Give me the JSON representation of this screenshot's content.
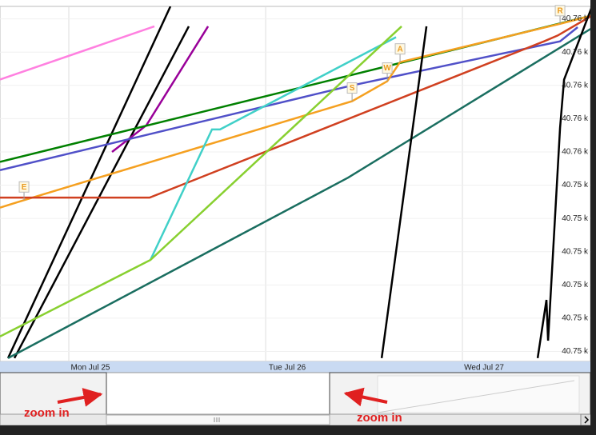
{
  "chart_data": {
    "type": "line",
    "xlim": [
      -8.39,
      63.6
    ],
    "xticks": [
      {
        "value": 0,
        "label": "Mon Jul 25"
      },
      {
        "value": 24,
        "label": "Tue Jul 26"
      },
      {
        "value": 48,
        "label": "Wed Jul 27"
      }
    ],
    "ylim": [
      40752.78,
      40757.05
    ],
    "yticks": [
      {
        "value": 40756.9,
        "label": "40.76 k"
      },
      {
        "value": 40756.5,
        "label": "40.76 k"
      },
      {
        "value": 40756.1,
        "label": "40.76 k"
      },
      {
        "value": 40755.7,
        "label": "40.76 k"
      },
      {
        "value": 40755.3,
        "label": "40.76 k"
      },
      {
        "value": 40754.9,
        "label": "40.75 k"
      },
      {
        "value": 40754.5,
        "label": "40.75 k"
      },
      {
        "value": 40754.1,
        "label": "40.75 k"
      },
      {
        "value": 40753.7,
        "label": "40.75 k"
      },
      {
        "value": 40753.3,
        "label": "40.75 k"
      },
      {
        "value": 40752.9,
        "label": "40.75 k"
      }
    ],
    "grid": true,
    "series": [
      {
        "color": "#ff80e0",
        "x": [
          -8.39,
          10.44
        ],
        "values": [
          40756.17,
          40756.81
        ]
      },
      {
        "color": "#000000",
        "x": [
          -7.41,
          12.39
        ],
        "values": [
          40752.82,
          40757.05
        ]
      },
      {
        "color": "#000000",
        "x": [
          -6.63,
          14.63
        ],
        "values": [
          40752.82,
          40756.81
        ]
      },
      {
        "color": "#990099",
        "x": [
          5.27,
          9.46,
          16.98
        ],
        "values": [
          40755.3,
          40755.62,
          40756.81
        ]
      },
      {
        "color": "#008000",
        "x": [
          -8.39,
          63.8
        ],
        "values": [
          40755.18,
          40756.94
        ]
      },
      {
        "color": "#5050c8",
        "x": [
          -8.39,
          34.54,
          59.9,
          62.05
        ],
        "values": [
          40755.08,
          40756.1,
          40756.63,
          40756.8
        ]
      },
      {
        "color": "#f5a020",
        "x": [
          -8.39,
          -5.46,
          34.54,
          38.83,
          40.39,
          59.9,
          63.8
        ],
        "values": [
          40754.63,
          40754.72,
          40755.91,
          40756.15,
          40756.38,
          40756.84,
          40756.94
        ]
      },
      {
        "color": "#d04020",
        "x": [
          -8.39,
          9.85,
          57.95,
          59.61,
          63.8
        ],
        "values": [
          40754.75,
          40754.75,
          40756.63,
          40756.7,
          40756.94
        ]
      },
      {
        "color": "#40d0c8",
        "x": [
          9.95,
          17.46,
          18.44,
          39.9
        ],
        "values": [
          40754.0,
          40755.57,
          40755.57,
          40756.68
        ]
      },
      {
        "color": "#88d030",
        "x": [
          -8.39,
          9.95,
          40.58
        ],
        "values": [
          40753.08,
          40754.0,
          40756.81
        ]
      },
      {
        "color": "#1a6e60",
        "x": [
          -7.41,
          34.05,
          63.8
        ],
        "values": [
          40752.82,
          40754.99,
          40756.79
        ]
      },
      {
        "color": "#000000",
        "x": [
          38.15,
          43.61
        ],
        "values": [
          40752.82,
          40756.81
        ]
      },
      {
        "color": "#000000",
        "x": [
          57.17,
          58.24,
          58.44,
          59.9,
          60.39,
          63.8
        ],
        "values": [
          40752.82,
          40753.52,
          40753.03,
          40755.59,
          40756.17,
          40757.05
        ]
      }
    ],
    "annotations": [
      {
        "label": "E",
        "x": -5.46,
        "y": 40754.72
      },
      {
        "label": "S",
        "x": 34.54,
        "y": 40755.91
      },
      {
        "label": "W",
        "x": 38.83,
        "y": 40756.15
      },
      {
        "label": "A",
        "x": 40.39,
        "y": 40756.38
      },
      {
        "label": "R",
        "x": 59.9,
        "y": 40756.84
      }
    ],
    "zoom_hints": [
      "zoom in",
      "zoom in"
    ]
  }
}
